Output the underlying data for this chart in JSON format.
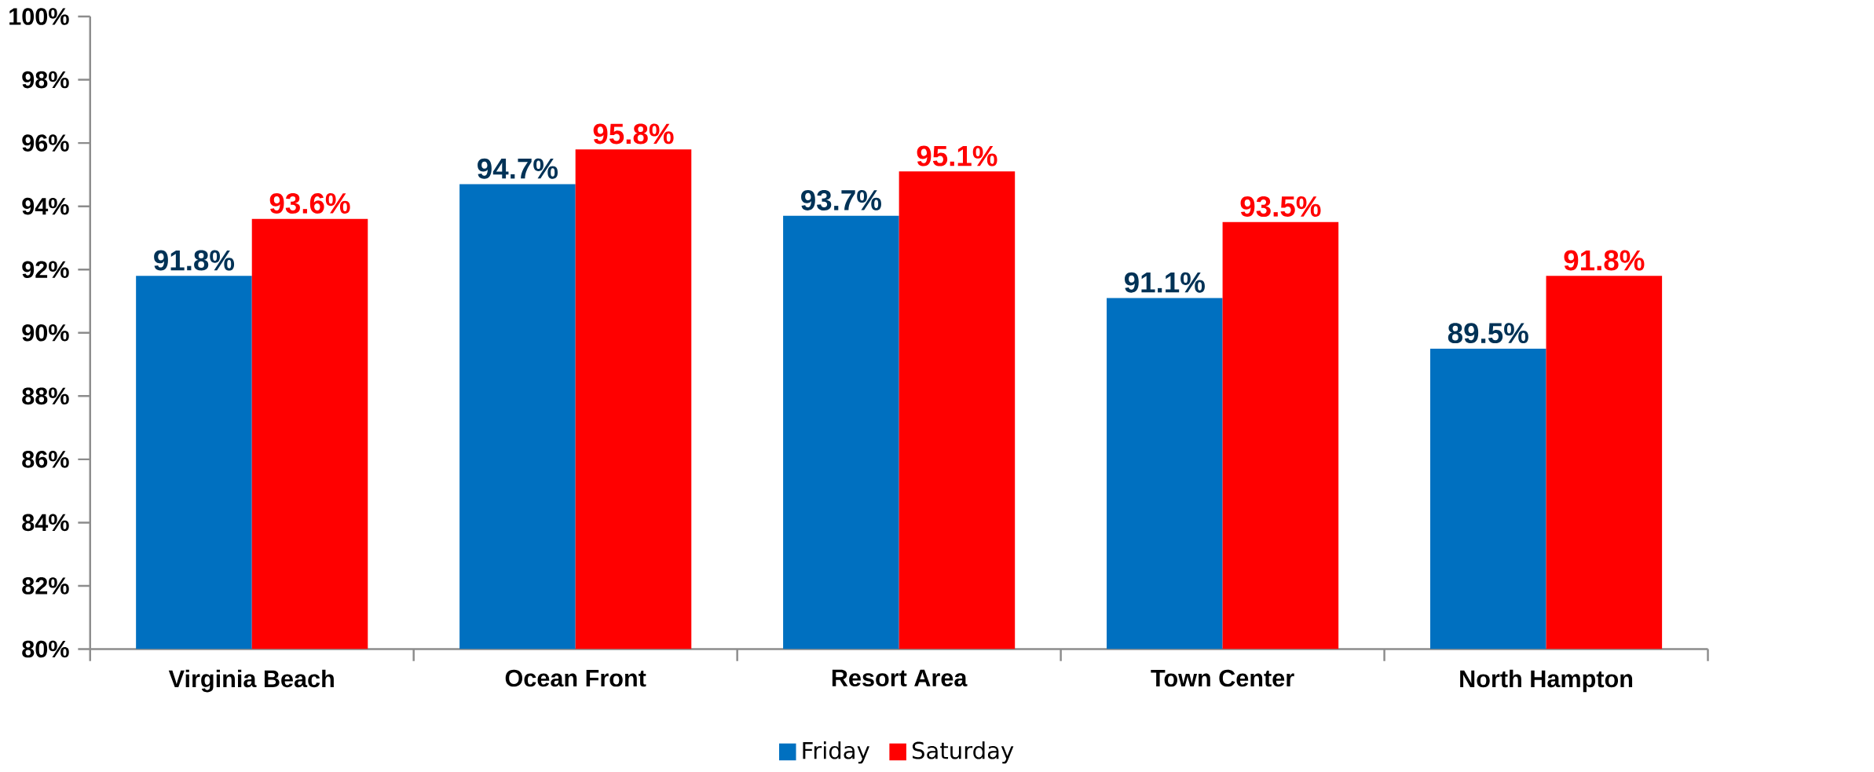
{
  "chart_data": {
    "type": "bar",
    "categories": [
      "Virginia Beach",
      "Ocean Front",
      "Resort Area",
      "Town Center",
      "North Hampton"
    ],
    "series": [
      {
        "name": "Friday",
        "color": "#0070c0",
        "values": [
          91.8,
          94.7,
          93.7,
          91.1,
          89.5
        ],
        "value_labels": [
          "91.8%",
          "94.7%",
          "93.7%",
          "91.1%",
          "89.5%"
        ]
      },
      {
        "name": "Saturday",
        "color": "#ff0000",
        "values": [
          93.6,
          95.8,
          95.1,
          93.5,
          91.8
        ],
        "value_labels": [
          "93.6%",
          "95.8%",
          "95.1%",
          "93.5%",
          "91.8%"
        ]
      }
    ],
    "ylim": [
      80,
      100
    ],
    "yticks": [
      {
        "value": 80,
        "label": "80%"
      },
      {
        "value": 82,
        "label": "82%"
      },
      {
        "value": 84,
        "label": "84%"
      },
      {
        "value": 86,
        "label": "86%"
      },
      {
        "value": 88,
        "label": "88%"
      },
      {
        "value": 90,
        "label": "90%"
      },
      {
        "value": 92,
        "label": "92%"
      },
      {
        "value": 94,
        "label": "94%"
      },
      {
        "value": 96,
        "label": "96%"
      },
      {
        "value": 98,
        "label": "98%"
      },
      {
        "value": 100,
        "label": "100%"
      }
    ],
    "grid": false,
    "legend": "bottom"
  }
}
